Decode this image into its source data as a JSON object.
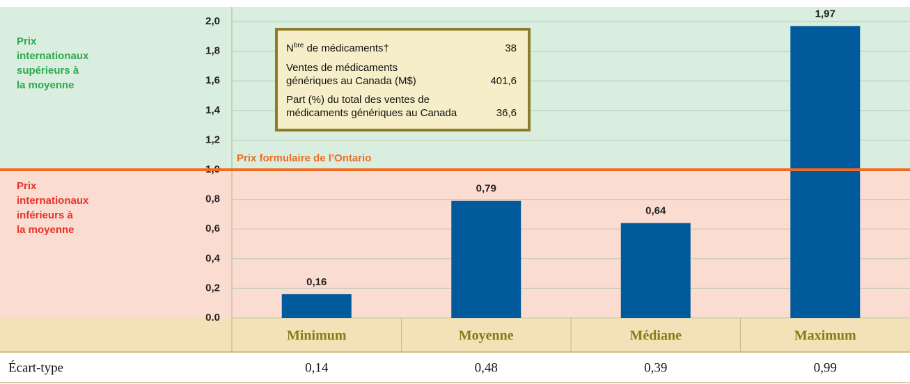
{
  "chart_data": {
    "type": "bar",
    "categories": [
      "Minimum",
      "Moyenne",
      "Médiane",
      "Maximum"
    ],
    "values": [
      0.16,
      0.79,
      0.64,
      1.97
    ],
    "value_labels": [
      "0,16",
      "0,79",
      "0,64",
      "1,97"
    ],
    "color": "#005a9c",
    "ylim": [
      0,
      2.0
    ],
    "yticks": [
      {
        "value": 0,
        "label": "0.0"
      },
      {
        "value": 0.2,
        "label": "0,2"
      },
      {
        "value": 0.4,
        "label": "0,4"
      },
      {
        "value": 0.6,
        "label": "0,6"
      },
      {
        "value": 0.8,
        "label": "0,8"
      },
      {
        "value": 1.0,
        "label": "1,0"
      },
      {
        "value": 1.2,
        "label": "1,2"
      },
      {
        "value": 1.4,
        "label": "1,4"
      },
      {
        "value": 1.6,
        "label": "1,6"
      },
      {
        "value": 1.8,
        "label": "1,8"
      },
      {
        "value": 2.0,
        "label": "2,0"
      }
    ],
    "grid": true,
    "reference_line": {
      "value": 1.0,
      "label": "Prix formulaire de l’Ontario",
      "color": "#f26b21"
    },
    "regions": [
      {
        "lines": [
          "Prix",
          "internationaux",
          "supérieurs à",
          "la moyenne"
        ],
        "color": "#2fa84f"
      },
      {
        "lines": [
          "Prix",
          "internationaux",
          "inférieurs à",
          "la moyenne"
        ],
        "color": "#e8322c"
      }
    ],
    "info_box": {
      "rows": [
        {
          "label": "N",
          "sup": "bre",
          "label_end": " de médicaments†",
          "value": 38
        },
        {
          "lines": [
            "Ventes de médicaments",
            "génériques au Canada (M$)"
          ],
          "value": 401.6,
          "value_label": "401,6"
        },
        {
          "lines": [
            "Part (%) du total des ventes de",
            "médicaments génériques au Canada"
          ],
          "value": 36.6,
          "value_label": "36,6"
        }
      ]
    },
    "std_dev": {
      "label": "Écart-type",
      "values": [
        0.14,
        0.48,
        0.39,
        0.99
      ],
      "value_labels": [
        "0,14",
        "0,48",
        "0,39",
        "0,99"
      ]
    }
  }
}
